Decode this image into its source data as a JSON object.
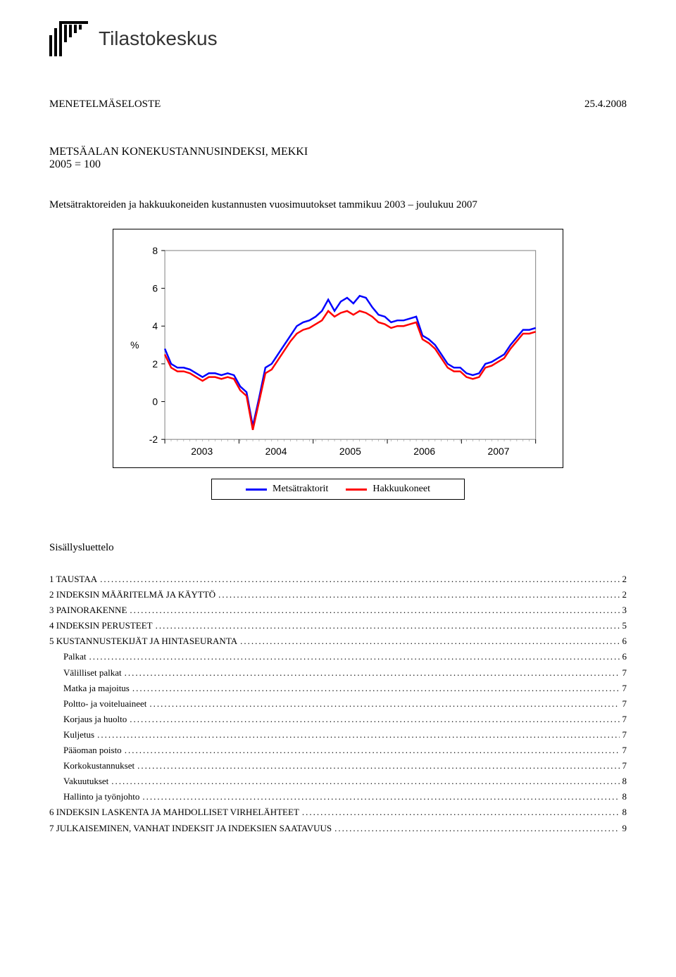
{
  "logo": {
    "text": "Tilastokeskus"
  },
  "header": {
    "doc_type": "MENETELMÄSELOSTE",
    "date": "25.4.2008"
  },
  "title": {
    "line1": "METSÄALAN KONEKUSTANNUSINDEKSI, MEKKI",
    "line2": "2005 = 100"
  },
  "chart_subtitle": "Metsätraktoreiden ja hakkuukoneiden kustannusten vuosimuutokset tammikuu 2003 – joulukuu 2007",
  "chart": {
    "type": "line",
    "y_label": "%",
    "y_min": -2,
    "y_max": 8,
    "y_tick_step": 2,
    "x_labels": [
      "2003",
      "2004",
      "2005",
      "2006",
      "2007"
    ],
    "x_points_per_year": 12,
    "background_color": "#ffffff",
    "border_color": "#000000",
    "line_width": 2.5,
    "axis_font_size": 14,
    "series": [
      {
        "name": "Metsätraktorit",
        "color": "#0000ff",
        "values": [
          2.8,
          2.0,
          1.8,
          1.8,
          1.7,
          1.5,
          1.3,
          1.5,
          1.5,
          1.4,
          1.5,
          1.4,
          0.8,
          0.5,
          -1.3,
          0.2,
          1.8,
          2.0,
          2.5,
          3.0,
          3.5,
          4.0,
          4.2,
          4.3,
          4.5,
          4.8,
          5.4,
          4.8,
          5.3,
          5.5,
          5.2,
          5.6,
          5.5,
          5.0,
          4.6,
          4.5,
          4.2,
          4.3,
          4.3,
          4.4,
          4.5,
          3.5,
          3.3,
          3.0,
          2.5,
          2.0,
          1.8,
          1.8,
          1.5,
          1.4,
          1.5,
          2.0,
          2.1,
          2.3,
          2.5,
          3.0,
          3.4,
          3.8,
          3.8,
          3.9
        ]
      },
      {
        "name": "Hakkuukoneet",
        "color": "#ff0000",
        "values": [
          2.5,
          1.8,
          1.6,
          1.6,
          1.5,
          1.3,
          1.1,
          1.3,
          1.3,
          1.2,
          1.3,
          1.2,
          0.6,
          0.3,
          -1.5,
          0.0,
          1.5,
          1.7,
          2.2,
          2.7,
          3.2,
          3.6,
          3.8,
          3.9,
          4.1,
          4.3,
          4.8,
          4.5,
          4.7,
          4.8,
          4.6,
          4.8,
          4.7,
          4.5,
          4.2,
          4.1,
          3.9,
          4.0,
          4.0,
          4.1,
          4.2,
          3.3,
          3.1,
          2.8,
          2.3,
          1.8,
          1.6,
          1.6,
          1.3,
          1.2,
          1.3,
          1.8,
          1.9,
          2.1,
          2.3,
          2.8,
          3.2,
          3.6,
          3.6,
          3.7
        ]
      }
    ]
  },
  "legend": {
    "items": [
      {
        "label": "Metsätraktorit",
        "color": "#0000ff"
      },
      {
        "label": "Hakkuukoneet",
        "color": "#ff0000"
      }
    ]
  },
  "toc_title": "Sisällysluettelo",
  "toc": [
    {
      "text": "1 TAUSTAA",
      "page": "2",
      "indent": 0,
      "smallcaps": true
    },
    {
      "text": "2 INDEKSIN MÄÄRITELMÄ JA KÄYTTÖ",
      "page": "2",
      "indent": 0,
      "smallcaps": true
    },
    {
      "text": "3 PAINORAKENNE",
      "page": "3",
      "indent": 0,
      "smallcaps": true
    },
    {
      "text": "4 INDEKSIN PERUSTEET",
      "page": "5",
      "indent": 0,
      "smallcaps": true
    },
    {
      "text": "5 KUSTANNUSTEKIJÄT JA HINTASEURANTA",
      "page": "6",
      "indent": 0,
      "smallcaps": true
    },
    {
      "text": "Palkat",
      "page": "6",
      "indent": 1
    },
    {
      "text": "Välilliset palkat",
      "page": "7",
      "indent": 1
    },
    {
      "text": "Matka ja majoitus",
      "page": "7",
      "indent": 1
    },
    {
      "text": "Poltto- ja voiteluaineet",
      "page": "7",
      "indent": 1
    },
    {
      "text": "Korjaus ja huolto",
      "page": "7",
      "indent": 1
    },
    {
      "text": "Kuljetus",
      "page": "7",
      "indent": 1
    },
    {
      "text": "Pääoman poisto",
      "page": "7",
      "indent": 1
    },
    {
      "text": "Korkokustannukset",
      "page": "7",
      "indent": 1
    },
    {
      "text": "Vakuutukset",
      "page": "8",
      "indent": 1
    },
    {
      "text": "Hallinto ja työnjohto",
      "page": "8",
      "indent": 1
    },
    {
      "text": "6 INDEKSIN LASKENTA JA MAHDOLLISET VIRHELÄHTEET",
      "page": "8",
      "indent": 0,
      "smallcaps": true
    },
    {
      "text": "7 JULKAISEMINEN, VANHAT INDEKSIT JA INDEKSIEN SAATAVUUS",
      "page": "9",
      "indent": 0,
      "smallcaps": true
    }
  ]
}
